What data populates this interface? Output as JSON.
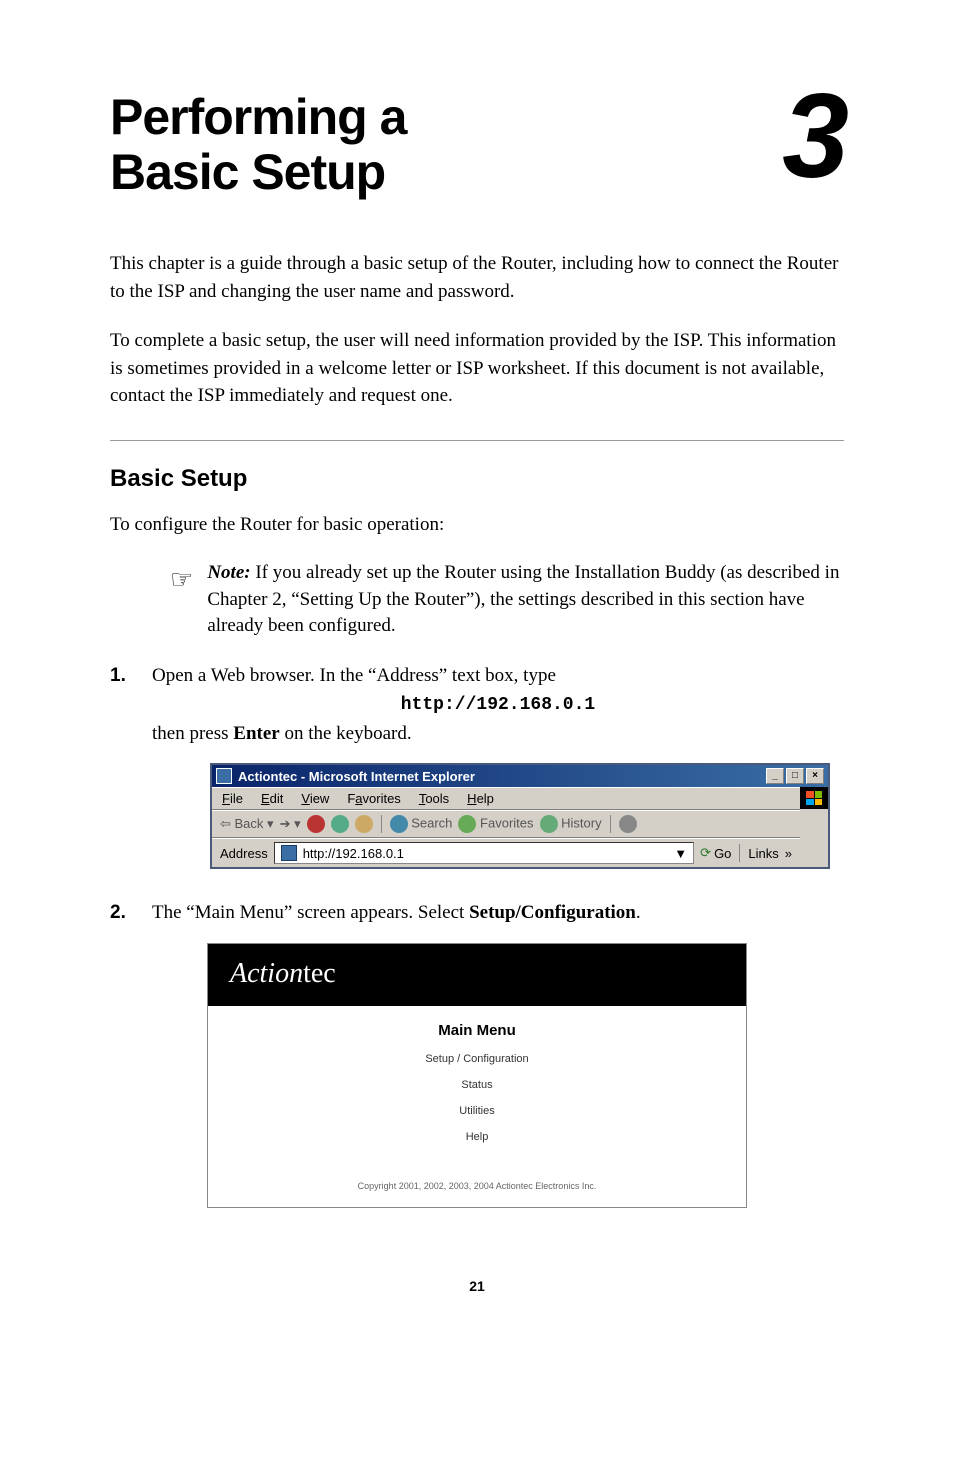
{
  "chapter": {
    "title_line1": "Performing a",
    "title_line2": "Basic Setup",
    "number": "3"
  },
  "intro_p1": "This chapter is a guide through a basic setup of the Router, including how to connect the Router to the ISP and changing the user name and password.",
  "intro_p2": "To complete a basic setup, the user will need information provided by the ISP. This information is sometimes provided in a welcome letter or ISP worksheet. If this document is not available, contact the ISP immediately and request one.",
  "section_title": "Basic Setup",
  "section_intro": "To configure the Router for basic operation:",
  "note": {
    "label": "Note:",
    "text": " If you already set up the Router using the Installation Buddy (as described in Chapter 2,  “Setting Up the Router”), the settings described in this section have already been configured."
  },
  "step1": {
    "num": "1.",
    "text_a": "Open a Web browser. In the “Address” text box, type",
    "url": "http://192.168.0.1",
    "text_b_a": "then press ",
    "text_b_bold": "Enter",
    "text_b_c": " on the keyboard."
  },
  "browser": {
    "title": "Actiontec - Microsoft Internet Explorer",
    "menu": {
      "file": "File",
      "edit": "Edit",
      "view": "View",
      "fav": "Favorites",
      "tools": "Tools",
      "help": "Help"
    },
    "toolbar": {
      "back": "Back",
      "search": "Search",
      "favorites": "Favorites",
      "history": "History"
    },
    "address_label": "Address",
    "address_value": "http://192.168.0.1",
    "go": "Go",
    "links": "Links"
  },
  "step2": {
    "num": "2.",
    "text_a": "The “Main Menu” screen appears. Select ",
    "text_bold": "Setup/Configuration",
    "text_c": "."
  },
  "actiontec": {
    "brand_a": "Action",
    "brand_b": "tec",
    "title": "Main Menu",
    "items": [
      "Setup / Configuration",
      "Status",
      "Utilities",
      "Help"
    ],
    "copyright": "Copyright 2001, 2002, 2003, 2004 Actiontec Electronics Inc."
  },
  "page_number": "21",
  "colors": {
    "titlebar_start": "#0a246a",
    "titlebar_end": "#3a6ea5",
    "win_bg": "#d4d0c8"
  }
}
